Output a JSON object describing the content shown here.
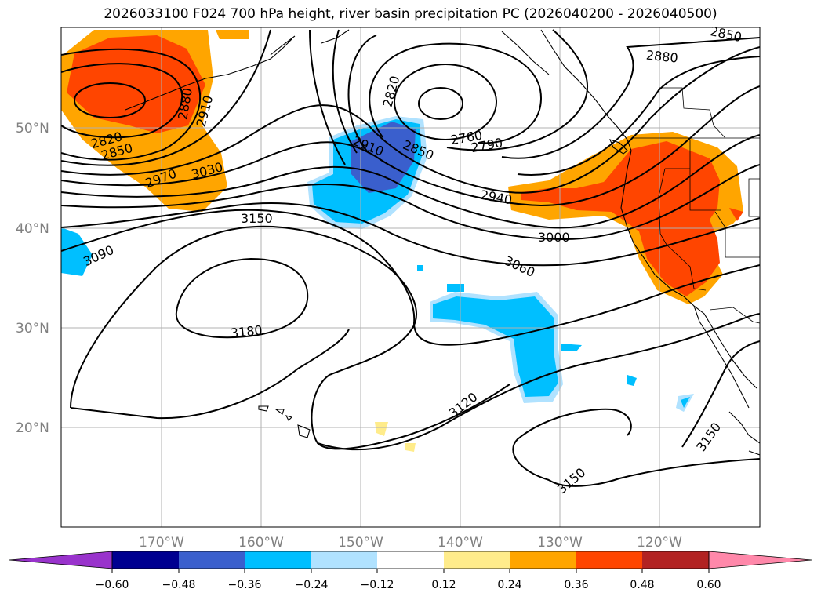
{
  "title": "2026033100 F024 700 hPa height, river basin precipitation PC (2026040200 - 2026040500)",
  "lat_labels": [
    "50°N",
    "40°N",
    "30°N",
    "20°N"
  ],
  "lon_labels": [
    "170°W",
    "160°W",
    "150°W",
    "140°W",
    "130°W",
    "120°W"
  ],
  "contour_labels": [
    "2850",
    "2880",
    "2820",
    "2760",
    "2790",
    "2910",
    "2850",
    "2940",
    "3000",
    "3060",
    "2820",
    "2850",
    "2880",
    "2910",
    "2970",
    "3030",
    "3090",
    "3150",
    "3180",
    "3120",
    "3150",
    "3150"
  ],
  "colorbar": {
    "ticks": [
      "−0.60",
      "−0.48",
      "−0.36",
      "−0.24",
      "−0.12",
      "0.12",
      "0.24",
      "0.36",
      "0.48",
      "0.60"
    ],
    "colors": {
      "under": "#9933cc",
      "neg_060_048": "#000090",
      "neg_048_036": "#3a5fcd",
      "neg_036_024": "#00bfff",
      "neg_024_012": "#b0e2ff",
      "mid": "#ffffff",
      "pos_012_024": "#ffec8b",
      "pos_024_036": "#ffa500",
      "pos_036_048": "#ff4500",
      "pos_048_060": "#b22222",
      "over": "#ff88aa"
    }
  }
}
